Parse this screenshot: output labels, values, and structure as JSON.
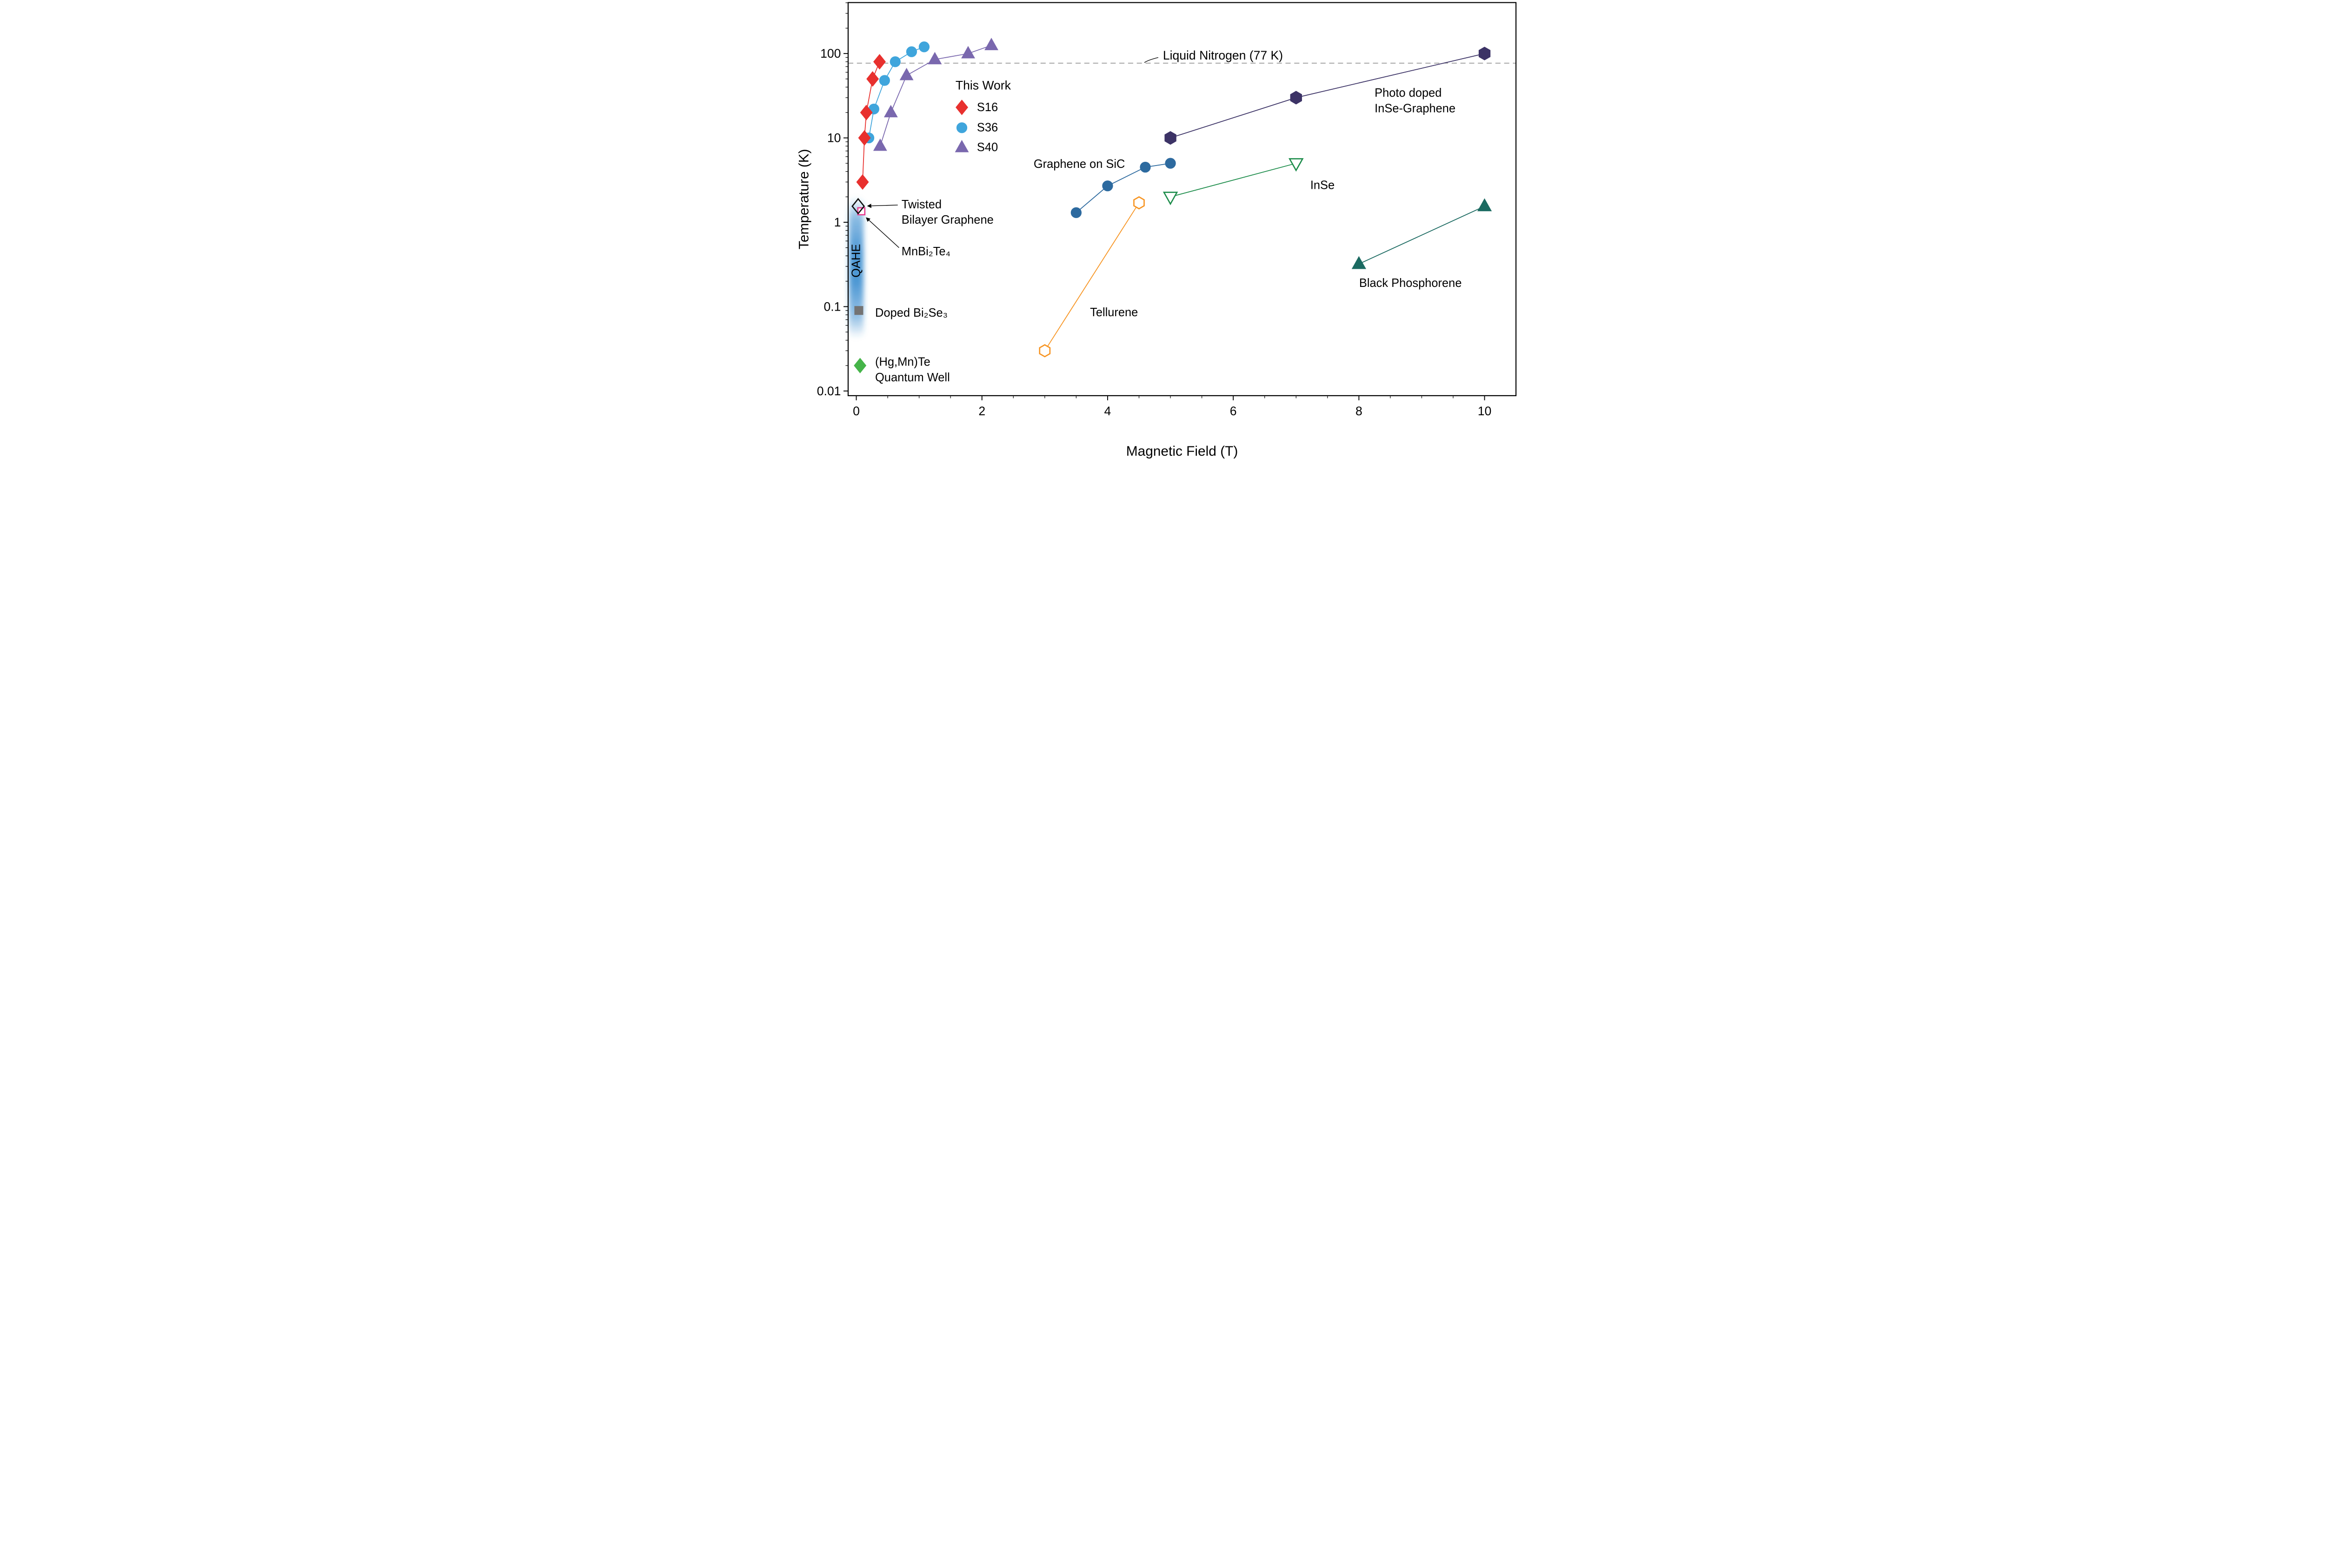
{
  "figure": {
    "background": "#ffffff"
  },
  "chart_data": {
    "type": "scatter",
    "xlabel": "Magnetic Field (T)",
    "ylabel": "Temperature (K)",
    "xscale": "linear",
    "yscale": "log",
    "xlim": [
      -0.13,
      10.5
    ],
    "ylim": [
      0.0088,
      402
    ],
    "x_ticks": [
      0,
      2,
      4,
      6,
      8,
      10
    ],
    "x_tick_labels": [
      "0",
      "2",
      "4",
      "6",
      "8",
      "10"
    ],
    "x_minor_step": 0.5,
    "y_ticks": [
      0.01,
      0.1,
      1,
      10,
      100
    ],
    "y_tick_labels": [
      "0.01",
      "0.1",
      "1",
      "10",
      "100"
    ],
    "reference_line": {
      "y": 77,
      "label": "Liquid Nitrogen (77 K)",
      "color": "#8a8a8a",
      "dashed": true,
      "label_x": 4.88,
      "label_y": 95
    },
    "qahe_band": {
      "label": "QAHE",
      "x": 0.0,
      "y_top": 2.0,
      "y_bottom": 0.042,
      "label_y": 0.35,
      "color": "#2f86cc",
      "label_color": "#ffffff"
    },
    "legend": {
      "title": "This Work",
      "title_x": 2.02,
      "title_y": 42,
      "marker_x": 1.68,
      "text_x": 1.92,
      "items": [
        {
          "label": "S16",
          "series": "s16",
          "y": 23
        },
        {
          "label": "S36",
          "series": "s36",
          "y": 13.2
        },
        {
          "label": "S40",
          "series": "s40",
          "y": 7.7
        }
      ]
    },
    "series": [
      {
        "id": "tellurene",
        "name": "Tellurene",
        "marker": "hexagon",
        "open": true,
        "color": "#f79421",
        "size": 10,
        "points": [
          [
            3.0,
            0.03
          ],
          [
            4.5,
            1.7
          ]
        ]
      },
      {
        "id": "graphene_sic",
        "name": "Graphene on SiC",
        "marker": "circle",
        "open": false,
        "color": "#2d6a9f",
        "size": 10,
        "points": [
          [
            3.5,
            1.3
          ],
          [
            4.0,
            2.7
          ],
          [
            4.6,
            4.5
          ],
          [
            5.0,
            5.0
          ]
        ]
      },
      {
        "id": "inse",
        "name": "InSe",
        "marker": "triangle-down",
        "open": true,
        "color": "#1c8c4a",
        "size": 11,
        "points": [
          [
            5.0,
            2.0
          ],
          [
            7.0,
            5.0
          ]
        ]
      },
      {
        "id": "black_phosphorene",
        "name": "Black Phosphorene",
        "marker": "triangle-up",
        "open": false,
        "color": "#1b6a61",
        "size": 11.5,
        "points": [
          [
            8.0,
            0.32
          ],
          [
            10.0,
            1.55
          ]
        ]
      },
      {
        "id": "inse_graphene",
        "name": "Photo doped InSe-Graphene",
        "marker": "hexagon",
        "open": false,
        "color": "#3c3366",
        "size": 11,
        "points": [
          [
            5.0,
            10
          ],
          [
            7.0,
            30
          ],
          [
            10.0,
            100
          ]
        ]
      },
      {
        "id": "s40",
        "name": "S40",
        "marker": "triangle-up",
        "open": false,
        "color": "#7a68ae",
        "size": 11,
        "points": [
          [
            0.38,
            8
          ],
          [
            0.55,
            20
          ],
          [
            0.8,
            55
          ],
          [
            1.25,
            85
          ],
          [
            1.78,
            100
          ],
          [
            2.15,
            125
          ]
        ]
      },
      {
        "id": "s36",
        "name": "S36",
        "marker": "circle",
        "open": false,
        "color": "#3fa5dc",
        "size": 10,
        "points": [
          [
            0.2,
            10
          ],
          [
            0.28,
            22
          ],
          [
            0.45,
            48
          ],
          [
            0.62,
            80
          ],
          [
            0.88,
            105
          ],
          [
            1.08,
            120
          ]
        ]
      },
      {
        "id": "s16",
        "name": "S16",
        "marker": "diamond",
        "open": false,
        "color": "#e8302e",
        "size": 11,
        "points": [
          [
            0.1,
            3
          ],
          [
            0.13,
            10
          ],
          [
            0.16,
            20
          ],
          [
            0.26,
            50
          ],
          [
            0.37,
            80
          ]
        ]
      },
      {
        "id": "doped_bi2se3",
        "name": "Doped Bi2Se3",
        "marker": "square",
        "open": false,
        "color": "#737373",
        "size": 9,
        "points": [
          [
            0.04,
            0.09
          ]
        ]
      },
      {
        "id": "hgmnte_qw",
        "name": "(Hg,Mn)Te Quantum Well",
        "marker": "diamond",
        "open": false,
        "color": "#45b449",
        "size": 11,
        "points": [
          [
            0.06,
            0.02
          ]
        ]
      },
      {
        "id": "mnbi2te4",
        "name": "MnBi2Te4",
        "marker": "square",
        "open": true,
        "color": "#e83a8e",
        "size": 7.5,
        "points": [
          [
            0.08,
            1.35
          ]
        ]
      },
      {
        "id": "twisted_bilayer_graphene",
        "name": "Twisted Bilayer Graphene",
        "marker": "diamond",
        "open": true,
        "no_fill": true,
        "color": "#111111",
        "size": 11,
        "points": [
          [
            0.03,
            1.55
          ]
        ]
      }
    ],
    "annotations": [
      {
        "id": "photo-doped",
        "lines": [
          "Photo doped",
          "InSe-Graphene"
        ],
        "x": 8.25,
        "y": 34,
        "color": "#3c3366",
        "anchor": "start"
      },
      {
        "id": "graphene-on-sic",
        "lines": [
          "Graphene on SiC"
        ],
        "x": 3.55,
        "y": 4.9,
        "color": "#2d6a9f",
        "anchor": "middle"
      },
      {
        "id": "inse-label",
        "lines": [
          "InSe"
        ],
        "x": 7.42,
        "y": 2.75,
        "color": "#1c8c4a",
        "anchor": "middle"
      },
      {
        "id": "black-phosphorene-label",
        "lines": [
          "Black Phosphorene"
        ],
        "x": 8.82,
        "y": 0.19,
        "color": "#1b6a61",
        "anchor": "middle"
      },
      {
        "id": "tellurene-label",
        "lines": [
          "Tellurene"
        ],
        "x": 3.72,
        "y": 0.085,
        "color": "#f79421",
        "anchor": "start"
      },
      {
        "id": "twisted-bilayer",
        "lines": [
          "Twisted",
          "Bilayer Graphene"
        ],
        "x": 0.72,
        "y": 1.62,
        "color": "#000000",
        "anchor": "start"
      },
      {
        "id": "mnbi2te4-label",
        "lines": [
          "MnBi₂Te₄"
        ],
        "x": 0.72,
        "y": 0.45,
        "color": "#000000",
        "anchor": "start"
      },
      {
        "id": "doped-bi2se3-label",
        "lines": [
          "Doped Bi₂Se₃"
        ],
        "x": 0.3,
        "y": 0.084,
        "color": "#000000",
        "anchor": "start"
      },
      {
        "id": "hgmnte-label",
        "lines": [
          "(Hg,Mn)Te",
          "Quantum Well"
        ],
        "x": 0.3,
        "y": 0.022,
        "color": "#000000",
        "anchor": "start"
      }
    ],
    "arrows": [
      {
        "id": "arrow-twisted-bilayer",
        "from": [
          0.66,
          1.6
        ],
        "to": [
          0.18,
          1.56
        ]
      },
      {
        "id": "arrow-mnbi2te4",
        "from": [
          0.68,
          0.5
        ],
        "to": [
          0.16,
          1.13
        ]
      }
    ]
  }
}
